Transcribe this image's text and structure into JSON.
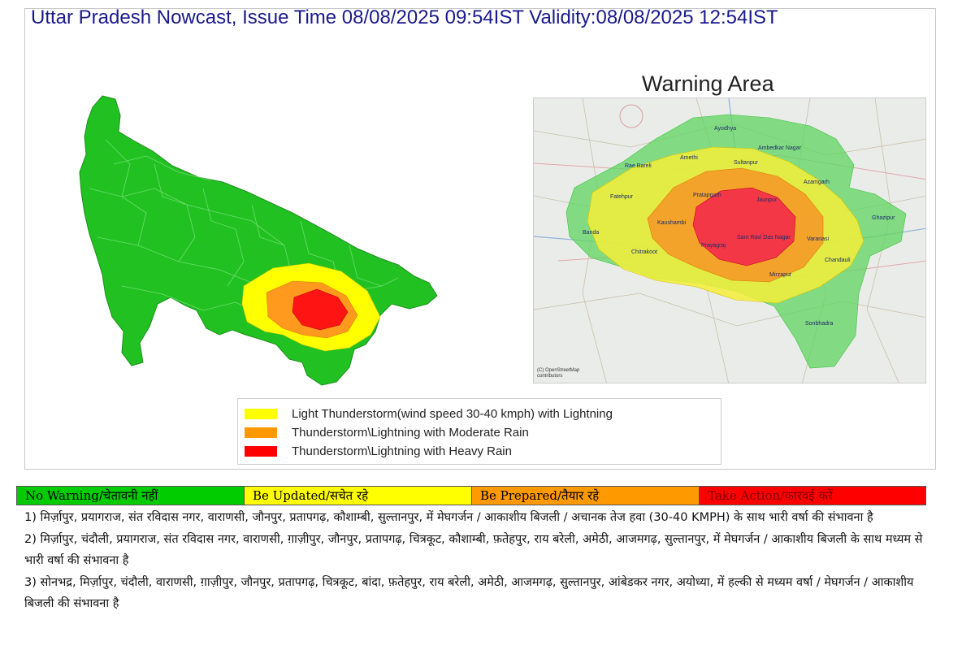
{
  "header": {
    "title": "Uttar Pradesh Nowcast, Issue Time 08/08/2025 09:54IST  Validity:08/08/2025 12:54IST"
  },
  "warning_area": {
    "title": "Warning Area",
    "attribution": "(C) OpenStreetMap contributors",
    "places": [
      "Ayodhya",
      "Ambedkar Nagar",
      "Amethi",
      "Sultanpur",
      "Rae Bareli",
      "Azamgarh",
      "Fatehpur",
      "Pratapgarh",
      "Jaunpur",
      "Ghazipur",
      "Banda",
      "Kaushambi",
      "Prayagraj",
      "Sant Ravi Das Nagar",
      "Varanasi",
      "Chitrakoot",
      "Chandauli",
      "Mirzapur",
      "Sonbhadra"
    ]
  },
  "legend": {
    "items": [
      {
        "label": "Light Thunderstorm(wind speed 30-40 kmph) with Lightning",
        "color": "#ffff00"
      },
      {
        "label": "Thunderstorm\\Lightning with Moderate Rain",
        "color": "#ff9900"
      },
      {
        "label": "Thunderstorm\\Lightning with Heavy Rain",
        "color": "#ff0000"
      }
    ]
  },
  "warning_levels": [
    {
      "label": "No Warning/चेतावनी नहीं",
      "color": "#00cc00",
      "text_color": "#000000"
    },
    {
      "label": "Be Updated/सचेत रहे",
      "color": "#ffff00",
      "text_color": "#000000"
    },
    {
      "label": "Be Prepared/तैयार रहे",
      "color": "#ff9900",
      "text_color": "#000000"
    },
    {
      "label": "Take Action/कारवई करें",
      "color": "#ff0000",
      "text_color": "#7a0000"
    }
  ],
  "bulletin": [
    "1) मिर्ज़ापुर, प्रयागराज, संत रविदास नगर, वाराणसी, जौनपुर, प्रतापगढ़, कौशाम्बी, सुल्तानपुर,  में मेघगर्जन / आकाशीय बिजली / अचानक तेज हवा (30-40 KMPH) के साथ भारी वर्षा की संभावना  है",
    "2) मिर्ज़ापुर, चंदौली, प्रयागराज, संत रविदास नगर, वाराणसी, ग़ाज़ीपुर, जौनपुर, प्रतापगढ़, चित्रकूट, कौशाम्बी, फ़तेहपुर, राय बरेली, अमेठी, आजमगढ़, सुल्तानपुर,  में मेघगर्जन / आकाशीय बिजली के साथ मध्यम से भारी वर्षा की संभावना  है",
    "3) सोनभद्र, मिर्ज़ापुर, चंदौली, वाराणसी, ग़ाज़ीपुर, जौनपुर, प्रतापगढ़, चित्रकूट, बांदा, फ़तेहपुर, राय बरेली, अमेठी, आजमगढ़, सुल्तानपुर, आंबेडकर नगर, अयोध्या,  में हल्की से मध्यम वर्षा / मेघगर्जन / आकाशीय बिजली  की संभावना  है"
  ]
}
